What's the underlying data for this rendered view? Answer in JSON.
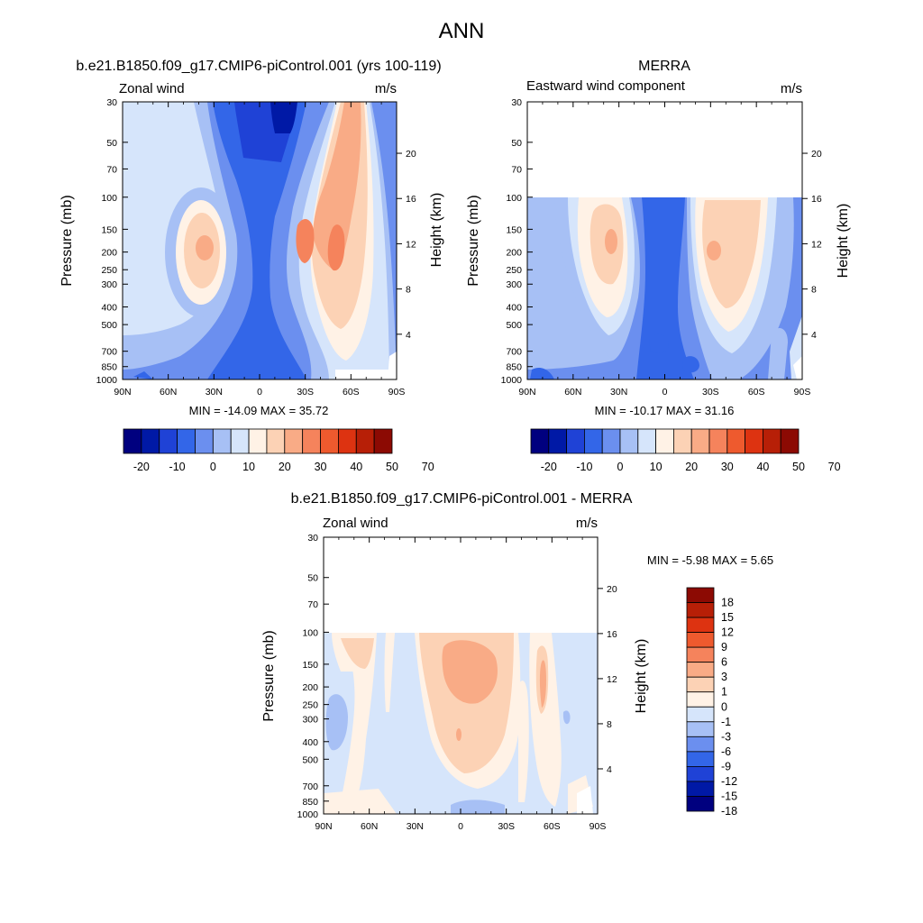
{
  "figure_title": "ANN",
  "panels": [
    {
      "id": "model",
      "title": "b.e21.B1850.f09_g17.CMIP6-piControl.001 (yrs 100-119)",
      "left_label": "Zonal wind",
      "right_label": "m/s",
      "ylabel": "Pressure (mb)",
      "ylabel_right": "Height (km)",
      "minmax": "MIN = -14.09  MAX = 35.72",
      "data_top": 30
    },
    {
      "id": "obs",
      "title": "MERRA",
      "left_label": "Eastward wind component",
      "right_label": "m/s",
      "ylabel": "Pressure (mb)",
      "ylabel_right": "Height (km)",
      "minmax": "MIN = -10.17  MAX = 31.16",
      "data_top": 100
    },
    {
      "id": "diff",
      "title": "b.e21.B1850.f09_g17.CMIP6-piControl.001 - MERRA",
      "left_label": "Zonal wind",
      "right_label": "m/s",
      "ylabel": "Pressure (mb)",
      "ylabel_right": "Height (km)",
      "minmax": "MIN =  -5.98  MAX =   5.65",
      "data_top": 100
    }
  ],
  "axes": {
    "x_ticks": [
      "90N",
      "60N",
      "30N",
      "0",
      "30S",
      "60S",
      "90S"
    ],
    "pressure_ticks": [
      30,
      50,
      70,
      100,
      150,
      200,
      250,
      300,
      400,
      500,
      700,
      850,
      1000
    ],
    "height_ticks": [
      4,
      8,
      12,
      16,
      20
    ],
    "pressure_range": [
      1000,
      30
    ]
  },
  "colorbars": {
    "abs_labels": [
      "-20",
      "-10",
      "0",
      "10",
      "20",
      "30",
      "40",
      "50",
      "70"
    ],
    "abs_colors": [
      "#00007f",
      "#0019a6",
      "#1f42d6",
      "#3366e8",
      "#6b8fef",
      "#a7c0f5",
      "#d6e5fb",
      "#fff2e6",
      "#fcd2b5",
      "#f9ab86",
      "#f5835c",
      "#ee5a2e",
      "#dd3311",
      "#b71f07",
      "#8c0a03"
    ],
    "diff_labels": [
      "18",
      "15",
      "12",
      "9",
      "6",
      "3",
      "1",
      "0",
      "-1",
      "-3",
      "-6",
      "-9",
      "-12",
      "-15",
      "-18"
    ],
    "diff_colors": [
      "#8c0a03",
      "#b71f07",
      "#dd3311",
      "#ee5a2e",
      "#f5835c",
      "#f9ab86",
      "#fcd2b5",
      "#fff2e6",
      "#d6e5fb",
      "#a7c0f5",
      "#6b8fef",
      "#3366e8",
      "#1f42d6",
      "#0019a6",
      "#00007f"
    ]
  },
  "chart_data": [
    {
      "type": "heatmap",
      "title": "b.e21.B1850.f09_g17.CMIP6-piControl.001 (yrs 100-119)",
      "variable": "Zonal wind",
      "units": "m/s",
      "x": [
        "90N",
        "60N",
        "30N",
        "0",
        "30S",
        "60S",
        "90S"
      ],
      "y_pressure_mb": [
        30,
        1000
      ],
      "min": -14.09,
      "max": 35.72,
      "features": [
        {
          "lat": 32,
          "p": 200,
          "value": 25
        },
        {
          "lat": -40,
          "p": 200,
          "value": 35
        },
        {
          "lat": -55,
          "p": 200,
          "value": 35
        },
        {
          "lat": -55,
          "p": 30,
          "value": 25
        },
        {
          "lat": 5,
          "p": 40,
          "value": -14
        }
      ]
    },
    {
      "type": "heatmap",
      "title": "MERRA",
      "variable": "Eastward wind component",
      "units": "m/s",
      "x": [
        "90N",
        "60N",
        "30N",
        "0",
        "30S",
        "60S",
        "90S"
      ],
      "y_pressure_mb": [
        100,
        1000
      ],
      "min": -10.17,
      "max": 31.16,
      "features": [
        {
          "lat": 34,
          "p": 180,
          "value": 25
        },
        {
          "lat": -42,
          "p": 200,
          "value": 31
        }
      ]
    },
    {
      "type": "heatmap",
      "title": "b.e21.B1850.f09_g17.CMIP6-piControl.001 - MERRA",
      "variable": "Zonal wind",
      "units": "m/s",
      "x": [
        "90N",
        "60N",
        "30N",
        "0",
        "30S",
        "60S",
        "90S"
      ],
      "y_pressure_mb": [
        100,
        1000
      ],
      "min": -5.98,
      "max": 5.65,
      "features": [
        {
          "lat": 5,
          "p": 180,
          "value": 5
        },
        {
          "lat": -53,
          "p": 200,
          "value": 4
        },
        {
          "lat": 75,
          "p": 350,
          "value": -4
        }
      ]
    }
  ]
}
